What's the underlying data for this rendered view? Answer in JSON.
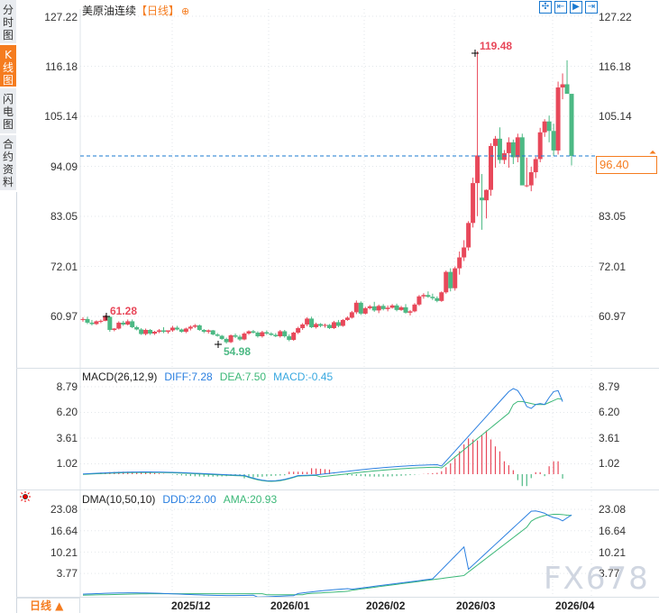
{
  "sidebar": {
    "tabs": [
      {
        "label": "分时图",
        "active": false
      },
      {
        "label": "K线图",
        "active": true
      },
      {
        "label": "闪电图",
        "active": false
      },
      {
        "label": "合约资料",
        "active": false
      }
    ]
  },
  "header": {
    "title": "美原油连续",
    "period": "【日线】",
    "add_icon": "⊕",
    "tools": [
      {
        "name": "crosshair-tool",
        "glyph": "✣"
      },
      {
        "name": "zoom-range-tool",
        "glyph": "⇤"
      },
      {
        "name": "play-tool",
        "glyph": "▶"
      },
      {
        "name": "goto-latest-tool",
        "glyph": "⇥"
      }
    ]
  },
  "main": {
    "y_labels": [
      "127.22",
      "116.18",
      "105.14",
      "94.09",
      "83.05",
      "72.01",
      "60.97"
    ],
    "right_labels": [
      "127.22",
      "116.18",
      "105.14",
      "94.09",
      "83.05",
      "72.01",
      "60.97"
    ],
    "current_price": "96.40",
    "high_label": "119.48",
    "low_label": "54.98",
    "local_high_label": "61.28"
  },
  "macd": {
    "title": "MACD(26,12,9)",
    "diff": "DIFF:7.28",
    "dea": "DEA:7.50",
    "macd": "MACD:-0.45",
    "y_labels": [
      "8.79",
      "6.20",
      "3.61",
      "1.02"
    ]
  },
  "dma": {
    "title": "DMA(10,50,10)",
    "ddd": "DDD:22.00",
    "ama": "AMA:20.93",
    "y_labels": [
      "23.08",
      "16.64",
      "10.21",
      "3.77"
    ]
  },
  "footer": {
    "period_label": "日线 ▲",
    "x_labels": [
      "2025/12",
      "2026/01",
      "2026/02",
      "2026/03",
      "2026/04"
    ],
    "watermark": "FX678"
  },
  "colors": {
    "up": "#e8485a",
    "down": "#4cb984",
    "accent": "#f57c1f",
    "diff_line": "#2a7fe0",
    "dea_line": "#3cb878",
    "price_line": "#1878d0"
  },
  "chart_data": [
    {
      "type": "candlestick",
      "title": "美原油连续【日线】",
      "ylim": [
        54.98,
        127.22
      ],
      "y_ticks": [
        60.97,
        72.01,
        83.05,
        94.09,
        105.14,
        116.18,
        127.22
      ],
      "x_ticks": [
        "2025/12",
        "2026/01",
        "2026/02",
        "2026/03",
        "2026/04"
      ],
      "annotations": {
        "max": 119.48,
        "min": 54.98,
        "early_high": 61.28,
        "last": 96.4
      },
      "ohlc": [
        [
          60.2,
          60.8,
          59.8,
          60.4
        ],
        [
          60.4,
          60.9,
          59.3,
          59.6
        ],
        [
          59.6,
          60.2,
          59.0,
          59.3
        ],
        [
          59.3,
          60.1,
          59.1,
          59.9
        ],
        [
          59.9,
          60.3,
          59.5,
          60.0
        ],
        [
          60.0,
          61.28,
          59.9,
          60.9
        ],
        [
          60.9,
          61.0,
          57.6,
          58.0
        ],
        [
          58.0,
          58.4,
          57.7,
          58.3
        ],
        [
          58.3,
          59.9,
          58.1,
          59.6
        ],
        [
          59.6,
          60.0,
          58.9,
          59.2
        ],
        [
          59.2,
          60.3,
          59.0,
          59.9
        ],
        [
          59.9,
          60.3,
          58.4,
          58.6
        ],
        [
          58.6,
          58.9,
          57.9,
          58.1
        ],
        [
          58.1,
          58.4,
          56.9,
          57.1
        ],
        [
          57.1,
          58.3,
          56.8,
          58.0
        ],
        [
          58.0,
          58.2,
          56.9,
          57.2
        ],
        [
          57.2,
          57.8,
          56.9,
          57.6
        ],
        [
          57.6,
          58.2,
          57.3,
          57.9
        ],
        [
          57.9,
          58.6,
          57.3,
          57.6
        ],
        [
          57.6,
          57.9,
          57.2,
          57.9
        ],
        [
          57.9,
          58.9,
          57.6,
          58.5
        ],
        [
          58.5,
          58.9,
          57.9,
          58.1
        ],
        [
          58.1,
          58.3,
          57.4,
          57.6
        ],
        [
          57.6,
          58.5,
          57.3,
          58.3
        ],
        [
          58.3,
          59.0,
          57.9,
          58.7
        ],
        [
          58.7,
          59.3,
          58.4,
          59.0
        ],
        [
          59.0,
          59.2,
          57.8,
          58.0
        ],
        [
          58.0,
          58.2,
          57.3,
          57.6
        ],
        [
          57.6,
          58.1,
          57.2,
          57.9
        ],
        [
          57.9,
          58.0,
          56.8,
          57.0
        ],
        [
          57.0,
          57.3,
          56.5,
          56.7
        ],
        [
          56.7,
          56.9,
          55.8,
          56.0
        ],
        [
          56.0,
          56.3,
          54.98,
          55.3
        ],
        [
          55.3,
          57.0,
          55.1,
          56.8
        ],
        [
          56.8,
          57.2,
          56.2,
          56.5
        ],
        [
          56.5,
          56.9,
          55.6,
          55.9
        ],
        [
          55.9,
          57.5,
          55.7,
          57.2
        ],
        [
          57.2,
          57.9,
          56.9,
          57.7
        ],
        [
          57.7,
          58.0,
          57.2,
          57.4
        ],
        [
          57.4,
          57.7,
          56.3,
          56.6
        ],
        [
          56.6,
          57.8,
          56.3,
          57.5
        ],
        [
          57.5,
          57.9,
          56.9,
          57.2
        ],
        [
          57.2,
          57.5,
          56.7,
          56.9
        ],
        [
          56.9,
          57.3,
          56.4,
          56.6
        ],
        [
          56.6,
          58.0,
          56.3,
          57.7
        ],
        [
          57.7,
          58.0,
          56.3,
          56.6
        ],
        [
          56.6,
          57.0,
          55.5,
          55.8
        ],
        [
          55.8,
          57.6,
          55.6,
          57.4
        ],
        [
          57.4,
          58.7,
          57.1,
          58.4
        ],
        [
          58.4,
          59.5,
          58.0,
          59.2
        ],
        [
          59.2,
          60.8,
          58.8,
          60.5
        ],
        [
          60.5,
          60.9,
          58.4,
          58.6
        ],
        [
          58.6,
          59.6,
          58.3,
          59.3
        ],
        [
          59.3,
          59.5,
          58.6,
          58.9
        ],
        [
          58.9,
          59.4,
          58.5,
          59.1
        ],
        [
          59.1,
          59.3,
          58.2,
          58.4
        ],
        [
          58.4,
          60.0,
          58.2,
          59.7
        ],
        [
          59.7,
          60.2,
          58.6,
          58.9
        ],
        [
          58.9,
          60.4,
          58.7,
          60.2
        ],
        [
          60.2,
          61.0,
          60.0,
          60.7
        ],
        [
          60.7,
          62.2,
          60.5,
          61.9
        ],
        [
          61.9,
          64.5,
          61.5,
          64.0
        ],
        [
          64.0,
          64.3,
          61.3,
          61.6
        ],
        [
          61.6,
          63.1,
          61.4,
          62.8
        ],
        [
          62.8,
          63.5,
          62.5,
          63.2
        ],
        [
          63.2,
          64.2,
          62.0,
          62.3
        ],
        [
          62.3,
          63.6,
          61.7,
          63.3
        ],
        [
          63.3,
          63.7,
          62.3,
          62.6
        ],
        [
          62.6,
          63.4,
          62.1,
          62.9
        ],
        [
          62.9,
          63.7,
          62.7,
          63.4
        ],
        [
          63.4,
          63.8,
          62.1,
          62.4
        ],
        [
          62.4,
          63.3,
          62.2,
          63.0
        ],
        [
          63.0,
          63.7,
          61.6,
          61.8
        ],
        [
          61.8,
          62.4,
          61.2,
          62.1
        ],
        [
          62.1,
          63.9,
          61.9,
          63.6
        ],
        [
          63.6,
          65.7,
          63.3,
          65.4
        ],
        [
          65.4,
          66.1,
          64.9,
          65.7
        ],
        [
          65.7,
          66.5,
          65.1,
          65.3
        ],
        [
          65.3,
          66.0,
          64.6,
          65.0
        ],
        [
          65.0,
          65.4,
          64.1,
          64.4
        ],
        [
          64.4,
          66.5,
          64.2,
          66.3
        ],
        [
          66.3,
          71.1,
          66.0,
          70.8
        ],
        [
          70.8,
          71.6,
          66.5,
          67.2
        ],
        [
          67.2,
          72.0,
          66.7,
          71.6
        ],
        [
          71.6,
          75.3,
          70.2,
          74.0
        ],
        [
          74.0,
          77.8,
          73.2,
          76.2
        ],
        [
          76.2,
          82.0,
          75.5,
          81.6
        ],
        [
          81.6,
          91.6,
          80.6,
          90.4
        ],
        [
          90.4,
          119.48,
          83.1,
          96.5
        ],
        [
          87.2,
          92.4,
          80.1,
          86.6
        ],
        [
          86.6,
          89.0,
          82.6,
          88.9
        ],
        [
          88.9,
          99.2,
          87.6,
          98.6
        ],
        [
          98.6,
          100.8,
          93.8,
          100.2
        ],
        [
          100.2,
          102.7,
          94.7,
          95.5
        ],
        [
          95.5,
          97.7,
          94.6,
          97.0
        ],
        [
          97.0,
          100.5,
          93.8,
          99.4
        ],
        [
          99.4,
          100.0,
          94.6,
          96.1
        ],
        [
          96.1,
          101.3,
          95.0,
          100.5
        ],
        [
          100.5,
          101.3,
          91.2,
          89.9
        ],
        [
          89.9,
          96.0,
          89.5,
          89.9
        ],
        [
          89.9,
          94.0,
          88.6,
          92.8
        ],
        [
          92.8,
          96.2,
          91.5,
          95.7
        ],
        [
          95.7,
          102.6,
          95.0,
          101.6
        ],
        [
          101.6,
          104.5,
          100.6,
          104.0
        ],
        [
          104.0,
          105.3,
          99.4,
          101.9
        ],
        [
          101.9,
          103.5,
          96.4,
          97.6
        ],
        [
          97.6,
          112.8,
          96.7,
          111.5
        ],
        [
          111.5,
          114.6,
          108.9,
          112.2
        ],
        [
          112.2,
          117.5,
          110.6,
          110.1
        ],
        [
          110.1,
          109.0,
          94.3,
          96.4
        ]
      ]
    },
    {
      "type": "line",
      "title": "MACD(26,12,9)",
      "series": [
        {
          "name": "DIFF",
          "last": 7.28
        },
        {
          "name": "DEA",
          "last": 7.5
        },
        {
          "name": "MACD",
          "last": -0.45
        }
      ],
      "y_ticks": [
        1.02,
        3.61,
        6.2,
        8.79
      ]
    },
    {
      "type": "line",
      "title": "DMA(10,50,10)",
      "series": [
        {
          "name": "DDD",
          "last": 22.0
        },
        {
          "name": "AMA",
          "last": 20.93
        }
      ],
      "y_ticks": [
        3.77,
        10.21,
        16.64,
        23.08
      ]
    }
  ]
}
